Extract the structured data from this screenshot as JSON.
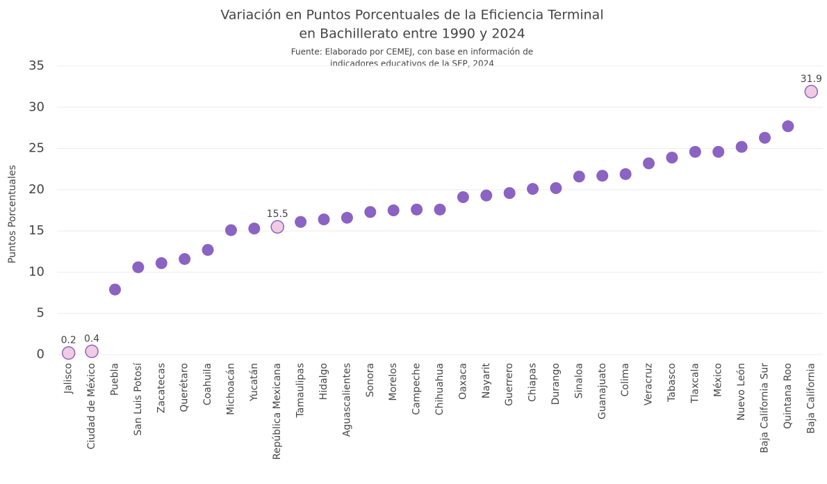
{
  "chart_data": {
    "type": "dot",
    "title": [
      "Variación en Puntos Porcentuales de la Eficiencia Terminal",
      "en Bachillerato entre 1990 y 2024"
    ],
    "subtitle": [
      "Fuente: Elaborado por CEMEJ, con base en información de",
      "indicadores educativos de la SEP, 2024"
    ],
    "ylabel": "Puntos Porcentuales",
    "categories": [
      "Jalisco",
      "Ciudad de México",
      "Puebla",
      "San Luis Potosí",
      "Zacatecas",
      "Querétaro",
      "Coahuila",
      "Michoacán",
      "Yucatán",
      "República Mexicana",
      "Tamaulipas",
      "Hidalgo",
      "Aguascalientes",
      "Sonora",
      "Morelos",
      "Campeche",
      "Chihuahua",
      "Oaxaca",
      "Nayarit",
      "Guerrero",
      "Chiapas",
      "Durango",
      "Sinaloa",
      "Guanajuato",
      "Colima",
      "Veracruz",
      "Tabasco",
      "Tlaxcala",
      "México",
      "Nuevo León",
      "Baja California Sur",
      "Quintana Roo",
      "Baja California"
    ],
    "values": [
      0.2,
      0.4,
      7.9,
      10.6,
      11.1,
      11.6,
      12.7,
      15.1,
      15.3,
      15.5,
      16.1,
      16.4,
      16.6,
      17.3,
      17.5,
      17.6,
      17.6,
      19.1,
      19.3,
      19.6,
      20.1,
      20.2,
      21.6,
      21.7,
      21.9,
      23.2,
      23.9,
      24.6,
      24.6,
      25.2,
      26.3,
      27.7,
      31.9
    ],
    "value_labels": [
      "0.2",
      "0.4",
      null,
      null,
      null,
      null,
      null,
      null,
      null,
      "15.5",
      null,
      null,
      null,
      null,
      null,
      null,
      null,
      null,
      null,
      null,
      null,
      null,
      null,
      null,
      null,
      null,
      null,
      null,
      null,
      null,
      null,
      null,
      "31.9"
    ],
    "color": "#8b63c2",
    "highlight_color": "#f0cbe2",
    "ylim": [
      0,
      35
    ],
    "yticks": [
      0,
      5,
      10,
      15,
      20,
      25,
      30,
      35
    ],
    "grid": true
  }
}
